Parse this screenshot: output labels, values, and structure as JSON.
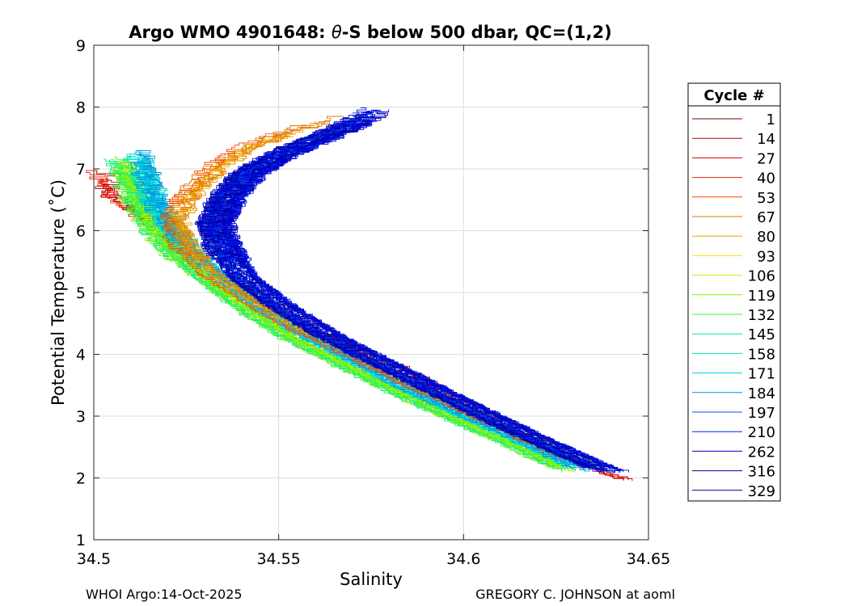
{
  "chart_data": {
    "type": "line",
    "title_prefix": "Argo WMO 4901648: ",
    "title_symbol": "θ",
    "title_suffix": "-S below 500 dbar,  QC=(1,2)",
    "xlabel": "Salinity",
    "ylabel": "Potential Temperature (˚C)",
    "xlim": [
      34.5,
      34.65
    ],
    "ylim": [
      1,
      9
    ],
    "xticks": [
      34.5,
      34.55,
      34.6,
      34.65
    ],
    "xtick_labels": [
      "34.5",
      "34.55",
      "34.6",
      "34.65"
    ],
    "yticks": [
      1,
      2,
      3,
      4,
      5,
      6,
      7,
      8,
      9
    ],
    "ytick_labels": [
      "1",
      "2",
      "3",
      "4",
      "5",
      "6",
      "7",
      "8",
      "9"
    ],
    "grid": true,
    "legend_title": "Cycle #",
    "legend_position": "outside-right",
    "series": [
      {
        "name": "1",
        "color": "#800000"
      },
      {
        "name": "14",
        "color": "#b00000"
      },
      {
        "name": "27",
        "color": "#dd0000"
      },
      {
        "name": "40",
        "color": "#f02000"
      },
      {
        "name": "53",
        "color": "#ff4000"
      },
      {
        "name": "67",
        "color": "#e07800"
      },
      {
        "name": "80",
        "color": "#f0a000"
      },
      {
        "name": "93",
        "color": "#ffe000"
      },
      {
        "name": "106",
        "color": "#c8f000"
      },
      {
        "name": "119",
        "color": "#80f000"
      },
      {
        "name": "132",
        "color": "#40f040"
      },
      {
        "name": "145",
        "color": "#00f080"
      },
      {
        "name": "158",
        "color": "#00e8c0"
      },
      {
        "name": "171",
        "color": "#00d0e8"
      },
      {
        "name": "184",
        "color": "#0090e0"
      },
      {
        "name": "197",
        "color": "#0050f0"
      },
      {
        "name": "210",
        "color": "#0020f0"
      },
      {
        "name": "262",
        "color": "#0000c8"
      },
      {
        "name": "316",
        "color": "#0000a0"
      },
      {
        "name": "329",
        "color": "#000080"
      }
    ],
    "profile_templates": {
      "coastal_red": {
        "color": "#dd0000",
        "points": [
          [
            34.5015,
            7.0
          ],
          [
            34.5045,
            6.7
          ],
          [
            34.507,
            6.5
          ],
          [
            34.512,
            6.3
          ],
          [
            34.519,
            6.05
          ],
          [
            34.525,
            5.7
          ],
          [
            34.533,
            5.35
          ],
          [
            34.543,
            5.0
          ],
          [
            34.555,
            4.6
          ],
          [
            34.568,
            4.2
          ],
          [
            34.583,
            3.8
          ],
          [
            34.597,
            3.35
          ],
          [
            34.612,
            2.85
          ],
          [
            34.627,
            2.4
          ],
          [
            34.64,
            2.05
          ],
          [
            34.647,
            1.92
          ]
        ]
      },
      "cyan_core": {
        "color": "#00d0e8",
        "points": [
          [
            34.512,
            7.3
          ],
          [
            34.514,
            6.9
          ],
          [
            34.516,
            6.5
          ],
          [
            34.52,
            6.1
          ],
          [
            34.526,
            5.65
          ],
          [
            34.535,
            5.2
          ],
          [
            34.545,
            4.75
          ],
          [
            34.557,
            4.3
          ],
          [
            34.57,
            3.9
          ],
          [
            34.584,
            3.45
          ],
          [
            34.6,
            3.0
          ],
          [
            34.615,
            2.6
          ],
          [
            34.627,
            2.25
          ],
          [
            34.633,
            2.08
          ]
        ]
      },
      "green_core": {
        "color": "#40f040",
        "points": [
          [
            34.507,
            7.2
          ],
          [
            34.509,
            6.8
          ],
          [
            34.512,
            6.4
          ],
          [
            34.516,
            6.0
          ],
          [
            34.522,
            5.6
          ],
          [
            34.531,
            5.15
          ],
          [
            34.541,
            4.7
          ],
          [
            34.553,
            4.25
          ],
          [
            34.566,
            3.85
          ],
          [
            34.581,
            3.4
          ],
          [
            34.597,
            2.95
          ],
          [
            34.612,
            2.55
          ],
          [
            34.624,
            2.2
          ],
          [
            34.63,
            2.07
          ]
        ]
      },
      "blue_core": {
        "color": "#0020f0",
        "points": [
          [
            34.578,
            8.0
          ],
          [
            34.57,
            7.7
          ],
          [
            34.56,
            7.45
          ],
          [
            34.55,
            7.2
          ],
          [
            34.542,
            6.9
          ],
          [
            34.536,
            6.5
          ],
          [
            34.533,
            6.1
          ],
          [
            34.535,
            5.7
          ],
          [
            34.541,
            5.2
          ],
          [
            34.551,
            4.75
          ],
          [
            34.563,
            4.3
          ],
          [
            34.576,
            3.9
          ],
          [
            34.591,
            3.45
          ],
          [
            34.606,
            3.0
          ],
          [
            34.622,
            2.55
          ],
          [
            34.635,
            2.2
          ],
          [
            34.642,
            2.05
          ]
        ]
      },
      "orange_core": {
        "color": "#f0a000",
        "points": [
          [
            34.565,
            7.85
          ],
          [
            34.558,
            7.7
          ],
          [
            34.549,
            7.5
          ],
          [
            34.54,
            7.3
          ],
          [
            34.533,
            7.0
          ],
          [
            34.526,
            6.6
          ],
          [
            34.522,
            6.2
          ],
          [
            34.524,
            5.75
          ],
          [
            34.531,
            5.3
          ],
          [
            34.542,
            4.85
          ],
          [
            34.555,
            4.4
          ],
          [
            34.569,
            4.0
          ],
          [
            34.584,
            3.55
          ],
          [
            34.6,
            3.1
          ],
          [
            34.616,
            2.65
          ],
          [
            34.63,
            2.28
          ],
          [
            34.637,
            2.1
          ]
        ]
      }
    }
  },
  "legend_labels": [
    "1",
    "14",
    "27",
    "40",
    "53",
    "67",
    "80",
    "93",
    "106",
    "119",
    "132",
    "145",
    "158",
    "171",
    "184",
    "197",
    "210",
    "262",
    "316",
    "329"
  ],
  "footer": {
    "left": "WHOI Argo:14-Oct-2025",
    "right": "GREGORY C. JOHNSON at aoml"
  }
}
